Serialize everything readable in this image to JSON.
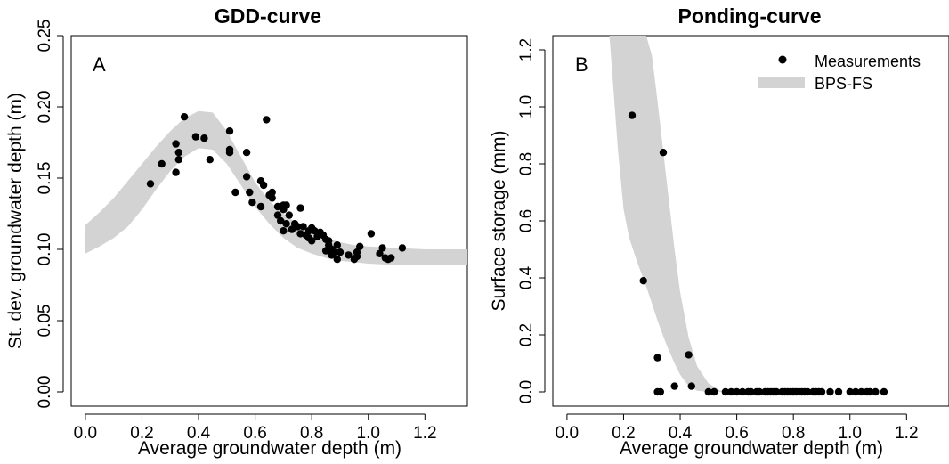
{
  "chart_data": [
    {
      "type": "scatter",
      "title": "GDD-curve",
      "panel_label": "A",
      "xlabel": "Average groundwater depth (m)",
      "ylabel": "St. dev. groundwater depth (m)",
      "xlim": [
        -0.05,
        1.35
      ],
      "ylim": [
        -0.01,
        0.25
      ],
      "xticks": [
        "0.0",
        "0.2",
        "0.4",
        "0.6",
        "0.8",
        "1.0",
        "1.2"
      ],
      "yticks": [
        "0.00",
        "0.05",
        "0.10",
        "0.15",
        "0.20",
        "0.25"
      ],
      "grid": false,
      "series": [
        {
          "type": "scatter",
          "color": "#000000",
          "points": [
            [
              0.23,
              0.146
            ],
            [
              0.27,
              0.16
            ],
            [
              0.32,
              0.174
            ],
            [
              0.32,
              0.154
            ],
            [
              0.33,
              0.168
            ],
            [
              0.33,
              0.163
            ],
            [
              0.35,
              0.193
            ],
            [
              0.39,
              0.179
            ],
            [
              0.42,
              0.178
            ],
            [
              0.44,
              0.163
            ],
            [
              0.51,
              0.183
            ],
            [
              0.51,
              0.17
            ],
            [
              0.51,
              0.168
            ],
            [
              0.53,
              0.14
            ],
            [
              0.57,
              0.168
            ],
            [
              0.57,
              0.151
            ],
            [
              0.58,
              0.14
            ],
            [
              0.59,
              0.133
            ],
            [
              0.62,
              0.148
            ],
            [
              0.62,
              0.13
            ],
            [
              0.63,
              0.145
            ],
            [
              0.64,
              0.191
            ],
            [
              0.65,
              0.138
            ],
            [
              0.66,
              0.14
            ],
            [
              0.66,
              0.136
            ],
            [
              0.68,
              0.13
            ],
            [
              0.68,
              0.124
            ],
            [
              0.69,
              0.12
            ],
            [
              0.7,
              0.131
            ],
            [
              0.7,
              0.128
            ],
            [
              0.7,
              0.113
            ],
            [
              0.71,
              0.131
            ],
            [
              0.71,
              0.118
            ],
            [
              0.72,
              0.124
            ],
            [
              0.73,
              0.114
            ],
            [
              0.74,
              0.118
            ],
            [
              0.75,
              0.116
            ],
            [
              0.76,
              0.111
            ],
            [
              0.76,
              0.129
            ],
            [
              0.77,
              0.116
            ],
            [
              0.78,
              0.11
            ],
            [
              0.79,
              0.108
            ],
            [
              0.79,
              0.113
            ],
            [
              0.8,
              0.106
            ],
            [
              0.8,
              0.115
            ],
            [
              0.81,
              0.113
            ],
            [
              0.82,
              0.109
            ],
            [
              0.83,
              0.112
            ],
            [
              0.84,
              0.11
            ],
            [
              0.85,
              0.099
            ],
            [
              0.85,
              0.107
            ],
            [
              0.86,
              0.106
            ],
            [
              0.86,
              0.103
            ],
            [
              0.87,
              0.096
            ],
            [
              0.87,
              0.1
            ],
            [
              0.88,
              0.098
            ],
            [
              0.89,
              0.103
            ],
            [
              0.89,
              0.093
            ],
            [
              0.9,
              0.098
            ],
            [
              0.93,
              0.096
            ],
            [
              0.95,
              0.093
            ],
            [
              0.96,
              0.098
            ],
            [
              0.96,
              0.095
            ],
            [
              0.97,
              0.102
            ],
            [
              1.01,
              0.111
            ],
            [
              1.04,
              0.097
            ],
            [
              1.05,
              0.101
            ],
            [
              1.06,
              0.094
            ],
            [
              1.07,
              0.093
            ],
            [
              1.08,
              0.094
            ],
            [
              1.12,
              0.101
            ]
          ]
        },
        {
          "type": "band",
          "name": "BPS-FS",
          "color": "#d3d3d3",
          "x": [
            0.0,
            0.05,
            0.1,
            0.15,
            0.2,
            0.25,
            0.3,
            0.35,
            0.4,
            0.45,
            0.5,
            0.55,
            0.6,
            0.65,
            0.7,
            0.75,
            0.8,
            0.85,
            0.9,
            0.95,
            1.0,
            1.1,
            1.2,
            1.35
          ],
          "lower": [
            0.097,
            0.102,
            0.108,
            0.116,
            0.128,
            0.142,
            0.155,
            0.165,
            0.171,
            0.17,
            0.16,
            0.145,
            0.13,
            0.118,
            0.108,
            0.101,
            0.097,
            0.094,
            0.092,
            0.091,
            0.09,
            0.089,
            0.089,
            0.089
          ],
          "upper": [
            0.117,
            0.126,
            0.136,
            0.148,
            0.16,
            0.172,
            0.183,
            0.192,
            0.197,
            0.196,
            0.183,
            0.165,
            0.147,
            0.134,
            0.125,
            0.118,
            0.112,
            0.108,
            0.105,
            0.103,
            0.102,
            0.101,
            0.1,
            0.1
          ]
        }
      ]
    },
    {
      "type": "scatter",
      "title": "Ponding-curve",
      "panel_label": "B",
      "xlabel": "Average groundwater depth (m)",
      "ylabel": "Surface storage (mm)",
      "xlim": [
        -0.05,
        1.35
      ],
      "ylim": [
        -0.05,
        1.25
      ],
      "xticks": [
        "0.0",
        "0.2",
        "0.4",
        "0.6",
        "0.8",
        "1.0",
        "1.2"
      ],
      "yticks": [
        "0.0",
        "0.2",
        "0.4",
        "0.6",
        "0.8",
        "1.0",
        "1.2"
      ],
      "grid": false,
      "legend": {
        "position": "top-right",
        "entries": [
          {
            "label": "Measurements",
            "kind": "point"
          },
          {
            "label": "BPS-FS",
            "kind": "band"
          }
        ]
      },
      "series": [
        {
          "type": "scatter",
          "name": "Measurements",
          "color": "#000000",
          "points": [
            [
              0.23,
              0.97
            ],
            [
              0.27,
              0.39
            ],
            [
              0.32,
              0.12
            ],
            [
              0.32,
              0.0
            ],
            [
              0.33,
              0.0
            ],
            [
              0.34,
              0.84
            ],
            [
              0.38,
              0.02
            ],
            [
              0.43,
              0.13
            ],
            [
              0.44,
              0.02
            ],
            [
              0.5,
              0.0
            ],
            [
              0.52,
              0.0
            ],
            [
              0.56,
              0.0
            ],
            [
              0.58,
              0.0
            ],
            [
              0.6,
              0.0
            ],
            [
              0.62,
              0.0
            ],
            [
              0.64,
              0.0
            ],
            [
              0.65,
              0.0
            ],
            [
              0.67,
              0.0
            ],
            [
              0.68,
              0.0
            ],
            [
              0.7,
              0.0
            ],
            [
              0.71,
              0.0
            ],
            [
              0.72,
              0.0
            ],
            [
              0.73,
              0.0
            ],
            [
              0.74,
              0.0
            ],
            [
              0.76,
              0.0
            ],
            [
              0.77,
              0.0
            ],
            [
              0.78,
              0.0
            ],
            [
              0.79,
              0.0
            ],
            [
              0.8,
              0.0
            ],
            [
              0.81,
              0.0
            ],
            [
              0.82,
              0.0
            ],
            [
              0.83,
              0.0
            ],
            [
              0.84,
              0.0
            ],
            [
              0.85,
              0.0
            ],
            [
              0.87,
              0.0
            ],
            [
              0.88,
              0.0
            ],
            [
              0.89,
              0.0
            ],
            [
              0.9,
              0.0
            ],
            [
              0.93,
              0.0
            ],
            [
              0.96,
              0.0
            ],
            [
              1.0,
              0.0
            ],
            [
              1.02,
              0.0
            ],
            [
              1.04,
              0.0
            ],
            [
              1.06,
              0.0
            ],
            [
              1.07,
              0.0
            ],
            [
              1.09,
              0.0
            ],
            [
              1.12,
              0.0
            ]
          ]
        },
        {
          "type": "band",
          "name": "BPS-FS",
          "color": "#d3d3d3",
          "x": [
            0.15,
            0.18,
            0.2,
            0.22,
            0.25,
            0.28,
            0.3,
            0.32,
            0.35,
            0.38,
            0.4,
            0.43,
            0.46,
            0.5,
            0.54,
            0.56,
            0.6
          ],
          "lower": [
            1.25,
            0.85,
            0.64,
            0.54,
            0.45,
            0.37,
            0.31,
            0.25,
            0.17,
            0.1,
            0.06,
            0.02,
            0.004,
            0.0,
            0.0,
            0.0,
            0.0
          ],
          "upper": [
            1.25,
            1.25,
            1.25,
            1.25,
            1.25,
            1.25,
            1.18,
            1.02,
            0.76,
            0.5,
            0.35,
            0.19,
            0.09,
            0.03,
            0.005,
            0.0,
            0.0
          ]
        }
      ]
    }
  ]
}
